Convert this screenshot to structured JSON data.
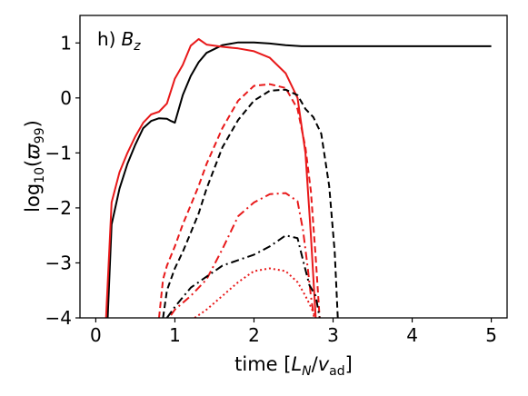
{
  "chart_data": {
    "type": "line",
    "panel_label": "h)",
    "panel_label_symbol": "B",
    "panel_label_subscript": "z",
    "xlabel": "time [L_N/v_ad]",
    "ylabel": "log10(ϖ99)",
    "xlim": [
      -0.2,
      5.2
    ],
    "ylim": [
      -4,
      1.5
    ],
    "xticks": [
      0,
      1,
      2,
      3,
      4,
      5
    ],
    "yticks": [
      -4,
      -3,
      -2,
      -1,
      0,
      1
    ],
    "xtick_labels": [
      "0",
      "1",
      "2",
      "3",
      "4",
      "5"
    ],
    "ytick_labels": [
      "−4",
      "−3",
      "−2",
      "−1",
      "0",
      "1"
    ],
    "grid": false,
    "series": [
      {
        "color": "#000000",
        "dash": "solid",
        "x": [
          0.15,
          0.2,
          0.3,
          0.4,
          0.5,
          0.6,
          0.7,
          0.8,
          0.9,
          0.95,
          1.0,
          1.1,
          1.2,
          1.3,
          1.4,
          1.6,
          1.8,
          2.0,
          2.2,
          2.4,
          2.6,
          3.0,
          3.5,
          4.0,
          4.5,
          5.0
        ],
        "y": [
          -4.0,
          -2.3,
          -1.65,
          -1.2,
          -0.85,
          -0.55,
          -0.42,
          -0.37,
          -0.38,
          -0.42,
          -0.45,
          0.05,
          0.4,
          0.65,
          0.82,
          0.96,
          1.01,
          1.01,
          0.99,
          0.96,
          0.94,
          0.94,
          0.94,
          0.94,
          0.94,
          0.94
        ]
      },
      {
        "color": "#e8191a",
        "dash": "solid",
        "x": [
          0.13,
          0.2,
          0.3,
          0.4,
          0.5,
          0.6,
          0.7,
          0.8,
          0.9,
          1.0,
          1.1,
          1.2,
          1.3,
          1.4,
          1.6,
          1.8,
          2.0,
          2.2,
          2.4,
          2.55,
          2.65,
          2.72,
          2.78
        ],
        "y": [
          -4.0,
          -1.9,
          -1.35,
          -1.0,
          -0.7,
          -0.45,
          -0.3,
          -0.25,
          -0.1,
          0.35,
          0.6,
          0.95,
          1.07,
          0.97,
          0.93,
          0.9,
          0.85,
          0.73,
          0.45,
          0.0,
          -1.0,
          -2.5,
          -4.0
        ]
      },
      {
        "color": "#e8191a",
        "dash": "dashed",
        "x": [
          0.8,
          0.85,
          0.9,
          1.0,
          1.1,
          1.2,
          1.3,
          1.4,
          1.6,
          1.8,
          2.0,
          2.2,
          2.4,
          2.55,
          2.65,
          2.72,
          2.78,
          2.83
        ],
        "y": [
          -4.0,
          -3.3,
          -3.05,
          -2.7,
          -2.3,
          -1.95,
          -1.6,
          -1.2,
          -0.55,
          -0.05,
          0.22,
          0.25,
          0.18,
          -0.2,
          -0.9,
          -1.7,
          -2.9,
          -4.0
        ]
      },
      {
        "color": "#000000",
        "dash": "dashed",
        "x": [
          0.85,
          0.9,
          1.0,
          1.1,
          1.2,
          1.3,
          1.4,
          1.6,
          1.8,
          2.0,
          2.2,
          2.4,
          2.55,
          2.65,
          2.75,
          2.85,
          2.95,
          3.02,
          3.06
        ],
        "y": [
          -4.0,
          -3.5,
          -3.1,
          -2.8,
          -2.45,
          -2.1,
          -1.65,
          -0.9,
          -0.4,
          -0.05,
          0.13,
          0.15,
          0.05,
          -0.2,
          -0.35,
          -0.65,
          -1.6,
          -2.8,
          -4.0
        ]
      },
      {
        "color": "#e8191a",
        "dash": "dashdot",
        "x": [
          0.95,
          1.0,
          1.2,
          1.4,
          1.6,
          1.8,
          2.0,
          2.2,
          2.4,
          2.55,
          2.62,
          2.68,
          2.72,
          2.76
        ],
        "y": [
          -3.95,
          -3.85,
          -3.6,
          -3.3,
          -2.75,
          -2.15,
          -1.9,
          -1.75,
          -1.73,
          -1.88,
          -2.4,
          -3.1,
          -3.6,
          -4.0
        ]
      },
      {
        "color": "#000000",
        "dash": "dashdot",
        "x": [
          0.9,
          1.0,
          1.2,
          1.4,
          1.6,
          1.8,
          2.0,
          2.2,
          2.4,
          2.55,
          2.62,
          2.7,
          2.78,
          2.83
        ],
        "y": [
          -4.0,
          -3.8,
          -3.45,
          -3.25,
          -3.05,
          -2.95,
          -2.85,
          -2.7,
          -2.5,
          -2.55,
          -2.95,
          -3.4,
          -3.6,
          -4.0
        ]
      },
      {
        "color": "#e8191a",
        "dash": "dotted",
        "x": [
          1.25,
          1.4,
          1.6,
          1.8,
          2.0,
          2.2,
          2.4,
          2.55,
          2.65,
          2.72,
          2.78
        ],
        "y": [
          -4.0,
          -3.85,
          -3.6,
          -3.35,
          -3.15,
          -3.1,
          -3.15,
          -3.35,
          -3.6,
          -3.8,
          -4.0
        ]
      }
    ]
  }
}
